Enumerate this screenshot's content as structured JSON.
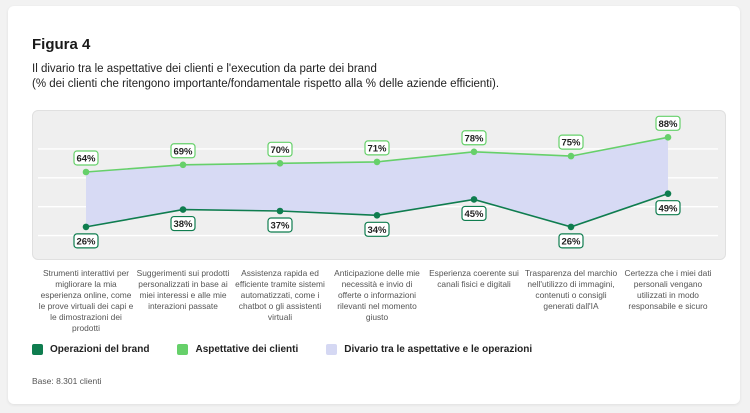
{
  "figure_title": "Figura 4",
  "subtitle_line1": "Il divario tra le aspettative dei clienti e l'execution da parte dei brand",
  "subtitle_line2": "(% dei clienti che ritengono importante/fondamentale rispetto alla % delle aziende efficienti).",
  "base_note": "Base: 8.301 clienti",
  "colors": {
    "operations": "#0f7d4f",
    "expectations": "#66d06a",
    "gap": "#d5d8f3"
  },
  "chart_data": {
    "type": "line",
    "categories": [
      "Strumenti interattivi per migliorare la mia esperienza online, come le prove virtuali dei capi e le dimostrazioni dei prodotti",
      "Suggerimenti sui prodotti personalizzati in base ai miei interessi e alle mie interazioni passate",
      "Assistenza rapida ed efficiente tramite sistemi automatizzati, come i chatbot o gli assistenti virtuali",
      "Anticipazione delle mie necessità e invio di offerte o informazioni rilevanti nel momento giusto",
      "Esperienza coerente sui canali fisici e digitali",
      "Trasparenza del marchio nell'utilizzo di immagini, contenuti o consigli generati dall'IA",
      "Certezza che i miei dati personali vengano utilizzati in modo responsabile e sicuro"
    ],
    "series": [
      {
        "name": "Operazioni del brand",
        "values": [
          26,
          38,
          37,
          34,
          45,
          26,
          49
        ],
        "labels": [
          "26%",
          "38%",
          "37%",
          "34%",
          "45%",
          "26%",
          "49%"
        ]
      },
      {
        "name": "Aspettative dei clienti",
        "values": [
          64,
          69,
          70,
          71,
          78,
          75,
          88
        ],
        "labels": [
          "64%",
          "69%",
          "70%",
          "71%",
          "78%",
          "75%",
          "88%"
        ]
      }
    ],
    "area_name": "Divario tra le aspettative e le operazioni",
    "ylim": [
      10,
      100
    ],
    "grid": true,
    "legend": "bottom-left"
  }
}
